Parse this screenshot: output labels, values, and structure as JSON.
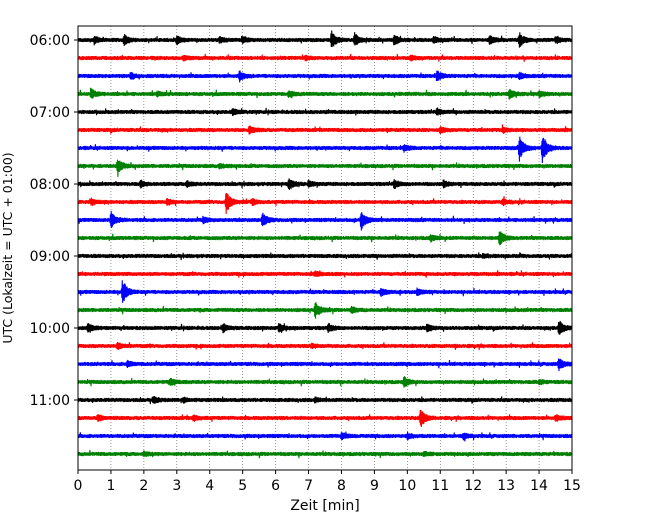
{
  "chart_data": {
    "type": "line",
    "title": "",
    "xlabel": "Zeit  [min]",
    "ylabel": "UTC (Lokalzeit = UTC + 01:00)",
    "xlim": [
      0,
      15
    ],
    "x_ticks": [
      "0",
      "1",
      "2",
      "3",
      "4",
      "5",
      "6",
      "7",
      "8",
      "9",
      "10",
      "11",
      "12",
      "13",
      "14",
      "15"
    ],
    "y_tick_labels": [
      "06:00",
      "07:00",
      "08:00",
      "09:00",
      "10:00",
      "11:00"
    ],
    "grid": {
      "vertical_dotted": true,
      "every_minutes": 1
    },
    "trace_interval_minutes": 15,
    "colors": [
      "#000000",
      "#ff0000",
      "#0000ff",
      "#008000"
    ],
    "series": [
      {
        "start": "06:00",
        "events": [
          [
            0.5,
            0.3
          ],
          [
            1.4,
            0.5
          ],
          [
            3.0,
            0.4
          ],
          [
            4.3,
            0.3
          ],
          [
            5.0,
            0.3
          ],
          [
            7.7,
            0.9
          ],
          [
            8.4,
            0.6
          ],
          [
            9.6,
            0.5
          ],
          [
            10.8,
            0.3
          ],
          [
            12.5,
            0.4
          ],
          [
            13.4,
            0.7
          ],
          [
            14.5,
            0.3
          ]
        ]
      },
      {
        "start": "06:15",
        "events": [
          [
            3.2,
            0.2
          ],
          [
            6.9,
            0.2
          ],
          [
            10.1,
            0.2
          ]
        ]
      },
      {
        "start": "06:30",
        "events": [
          [
            1.6,
            0.3
          ],
          [
            4.9,
            0.5
          ],
          [
            10.9,
            0.5
          ],
          [
            13.4,
            0.3
          ]
        ]
      },
      {
        "start": "06:45",
        "events": [
          [
            0.4,
            0.5
          ],
          [
            2.4,
            0.2
          ],
          [
            6.4,
            0.3
          ],
          [
            13.1,
            0.5
          ],
          [
            14.0,
            0.3
          ]
        ]
      },
      {
        "start": "07:00",
        "events": [
          [
            4.7,
            0.3
          ],
          [
            10.9,
            0.3
          ]
        ]
      },
      {
        "start": "07:15",
        "events": [
          [
            5.2,
            0.4
          ],
          [
            11.0,
            0.3
          ],
          [
            12.9,
            0.3
          ]
        ]
      },
      {
        "start": "07:30",
        "events": [
          [
            9.9,
            0.3
          ],
          [
            13.4,
            1.3
          ],
          [
            14.1,
            1.5
          ]
        ]
      },
      {
        "start": "07:45",
        "events": [
          [
            1.2,
            0.8
          ],
          [
            4.3,
            0.2
          ]
        ]
      },
      {
        "start": "08:00",
        "events": [
          [
            1.9,
            0.3
          ],
          [
            3.3,
            0.3
          ],
          [
            6.4,
            0.6
          ],
          [
            7.0,
            0.3
          ],
          [
            9.6,
            0.4
          ],
          [
            11.1,
            0.3
          ]
        ]
      },
      {
        "start": "08:15",
        "events": [
          [
            0.4,
            0.3
          ],
          [
            2.7,
            0.3
          ],
          [
            4.5,
            1.1
          ],
          [
            5.3,
            0.3
          ],
          [
            12.9,
            0.3
          ]
        ]
      },
      {
        "start": "08:30",
        "events": [
          [
            1.0,
            0.9
          ],
          [
            3.8,
            0.3
          ],
          [
            5.6,
            0.7
          ],
          [
            8.6,
            1.0
          ]
        ]
      },
      {
        "start": "08:45",
        "events": [
          [
            10.7,
            0.3
          ],
          [
            12.8,
            0.8
          ]
        ]
      },
      {
        "start": "09:00",
        "events": [
          [
            12.3,
            0.2
          ]
        ]
      },
      {
        "start": "09:15",
        "events": [
          [
            7.2,
            0.2
          ]
        ]
      },
      {
        "start": "09:30",
        "events": [
          [
            1.35,
            1.3
          ],
          [
            9.2,
            0.4
          ],
          [
            10.3,
            0.3
          ]
        ]
      },
      {
        "start": "09:45",
        "events": [
          [
            7.2,
            0.8
          ],
          [
            8.3,
            0.3
          ]
        ]
      },
      {
        "start": "10:00",
        "events": [
          [
            0.3,
            0.5
          ],
          [
            4.4,
            0.4
          ],
          [
            6.1,
            0.4
          ],
          [
            7.6,
            0.4
          ],
          [
            10.6,
            0.4
          ],
          [
            14.6,
            0.8
          ]
        ]
      },
      {
        "start": "10:15",
        "events": [
          [
            1.2,
            0.3
          ],
          [
            7.1,
            0.2
          ]
        ]
      },
      {
        "start": "10:30",
        "events": [
          [
            1.5,
            0.3
          ],
          [
            14.6,
            0.6
          ]
        ]
      },
      {
        "start": "10:45",
        "events": [
          [
            2.8,
            0.3
          ],
          [
            9.9,
            0.5
          ],
          [
            14.0,
            0.2
          ]
        ]
      },
      {
        "start": "11:00",
        "events": [
          [
            2.3,
            0.3
          ],
          [
            3.2,
            0.2
          ],
          [
            7.2,
            0.2
          ]
        ]
      },
      {
        "start": "11:15",
        "events": [
          [
            0.6,
            0.3
          ],
          [
            3.5,
            0.3
          ],
          [
            10.4,
            1.0
          ],
          [
            14.5,
            0.3
          ]
        ]
      },
      {
        "start": "11:30",
        "events": [
          [
            8.0,
            0.3
          ],
          [
            10.0,
            0.3
          ],
          [
            11.7,
            0.3
          ]
        ]
      },
      {
        "start": "11:45",
        "events": [
          [
            2.0,
            0.2
          ],
          [
            10.5,
            0.2
          ]
        ]
      }
    ]
  }
}
